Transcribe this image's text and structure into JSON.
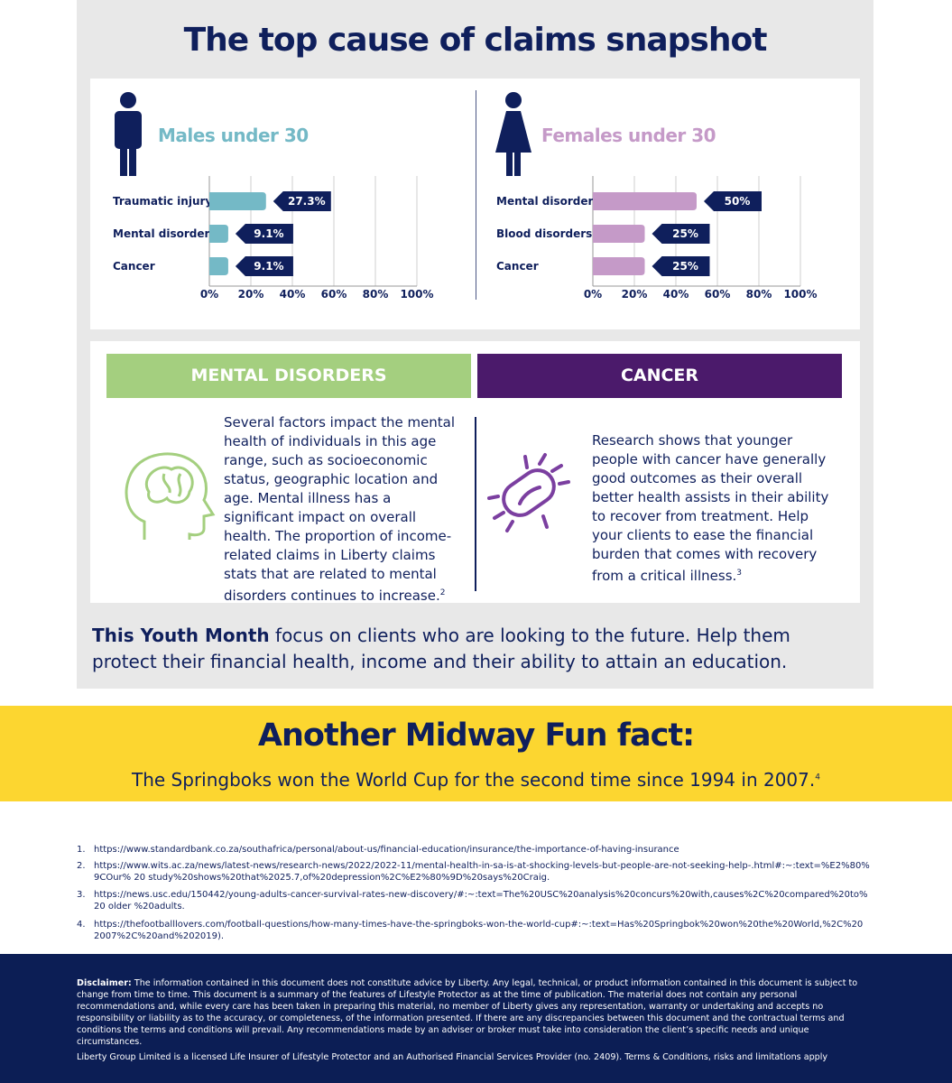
{
  "header": {
    "title": "The top cause of claims snapshot"
  },
  "chart_data": [
    {
      "type": "bar",
      "orientation": "horizontal",
      "title": "Males under 30",
      "categories": [
        "Traumatic injury",
        "Mental disorders",
        "Cancer"
      ],
      "values": [
        27.3,
        9.1,
        9.1
      ],
      "value_labels": [
        "27.3%",
        "9.1%",
        "9.1%"
      ],
      "color": "#74b9c6",
      "xlim": [
        0,
        100
      ],
      "xticks": [
        {
          "value": 0,
          "label": "0%"
        },
        {
          "value": 20,
          "label": "20%"
        },
        {
          "value": 40,
          "label": "40%"
        },
        {
          "value": 60,
          "label": "60%"
        },
        {
          "value": 80,
          "label": "80%"
        },
        {
          "value": 100,
          "label": "100%"
        }
      ],
      "grid": true
    },
    {
      "type": "bar",
      "orientation": "horizontal",
      "title": "Females under 30",
      "categories": [
        "Mental disorders",
        "Blood disorders",
        "Cancer"
      ],
      "values": [
        50,
        25,
        25
      ],
      "value_labels": [
        "50%",
        "25%",
        "25%"
      ],
      "color": "#c59ac8",
      "xlim": [
        0,
        100
      ],
      "xticks": [
        {
          "value": 0,
          "label": "0%"
        },
        {
          "value": 20,
          "label": "20%"
        },
        {
          "value": 40,
          "label": "40%"
        },
        {
          "value": 60,
          "label": "60%"
        },
        {
          "value": 80,
          "label": "80%"
        },
        {
          "value": 100,
          "label": "100%"
        }
      ],
      "grid": true
    }
  ],
  "sections": [
    {
      "title": "MENTAL DISORDERS",
      "text": "Several factors impact the mental health of individuals in this age range, such as socioeconomic status, geographic location and age. Mental illness has a significant impact on overall health. The proportion of income-related claims in Liberty claims stats that are related to mental disorders continues to increase.",
      "footnote": "2"
    },
    {
      "title": "CANCER",
      "text": "Research shows that younger people with cancer have generally good outcomes as their overall better health assists in their ability to recover from treatment. Help your clients to ease the financial burden that comes with recovery from a critical illness.",
      "footnote": "3"
    }
  ],
  "callout": {
    "bold": "This Youth Month",
    "text": "focus on clients who are looking to the future. Help them protect their financial health, income and their ability to attain an education."
  },
  "fun_fact": {
    "title": "Another Midway Fun fact:",
    "text": "The Springboks won the World Cup for the second time since 1994 in 2007.",
    "footnote": "4"
  },
  "references": [
    {
      "number": "1.",
      "url": "https://www.standardbank.co.za/southafrica/personal/about-us/financial-education/insurance/the-importance-of-having-insurance"
    },
    {
      "number": "2.",
      "url": "https://www.wits.ac.za/news/latest-news/research-news/2022/2022-11/mental-health-in-sa-is-at-shocking-levels-but-people-are-not-seeking-help-.html#:~:text=%E2%80%9COur% 20 study%20shows%20that%2025.7,of%20depression%2C%E2%80%9D%20says%20Craig."
    },
    {
      "number": "3.",
      "url": "https://news.usc.edu/150442/young-adults-cancer-survival-rates-new-discovery/#:~:text=The%20USC%20analysis%20concurs%20with,causes%2C%20compared%20to%20 older %20adults."
    },
    {
      "number": "4.",
      "url": "https://thefootballlovers.com/football-questions/how-many-times-have-the-springboks-won-the-world-cup#:~:text=Has%20Springbok%20won%20the%20World,%2C%20 2007%2C%20and%202019)."
    }
  ],
  "disclaimer": {
    "label": "Disclaimer:",
    "text": "The information contained in this document does not constitute advice by Liberty. Any legal, technical, or product information contained in this document is subject to change from time to time. This document is a summary of the features of Lifestyle Protector as at the time of publication. The material does not contain any personal recommendations and, while every care has been taken in preparing this material, no member of Liberty gives any representation, warranty or undertaking and accepts no responsibility or liability as to the accuracy, or completeness, of the information presented. If there are any discrepancies between this document and the contractual terms and conditions the terms and conditions will prevail. Any recommendations made by an adviser or broker must take into consideration the client’s specific needs and unique circumstances.",
    "license": "Liberty Group Limited is a licensed Life Insurer of Lifestyle Protector and an Authorised Financial Services Provider (no. 2409). Terms & Conditions, risks and limitations apply"
  }
}
